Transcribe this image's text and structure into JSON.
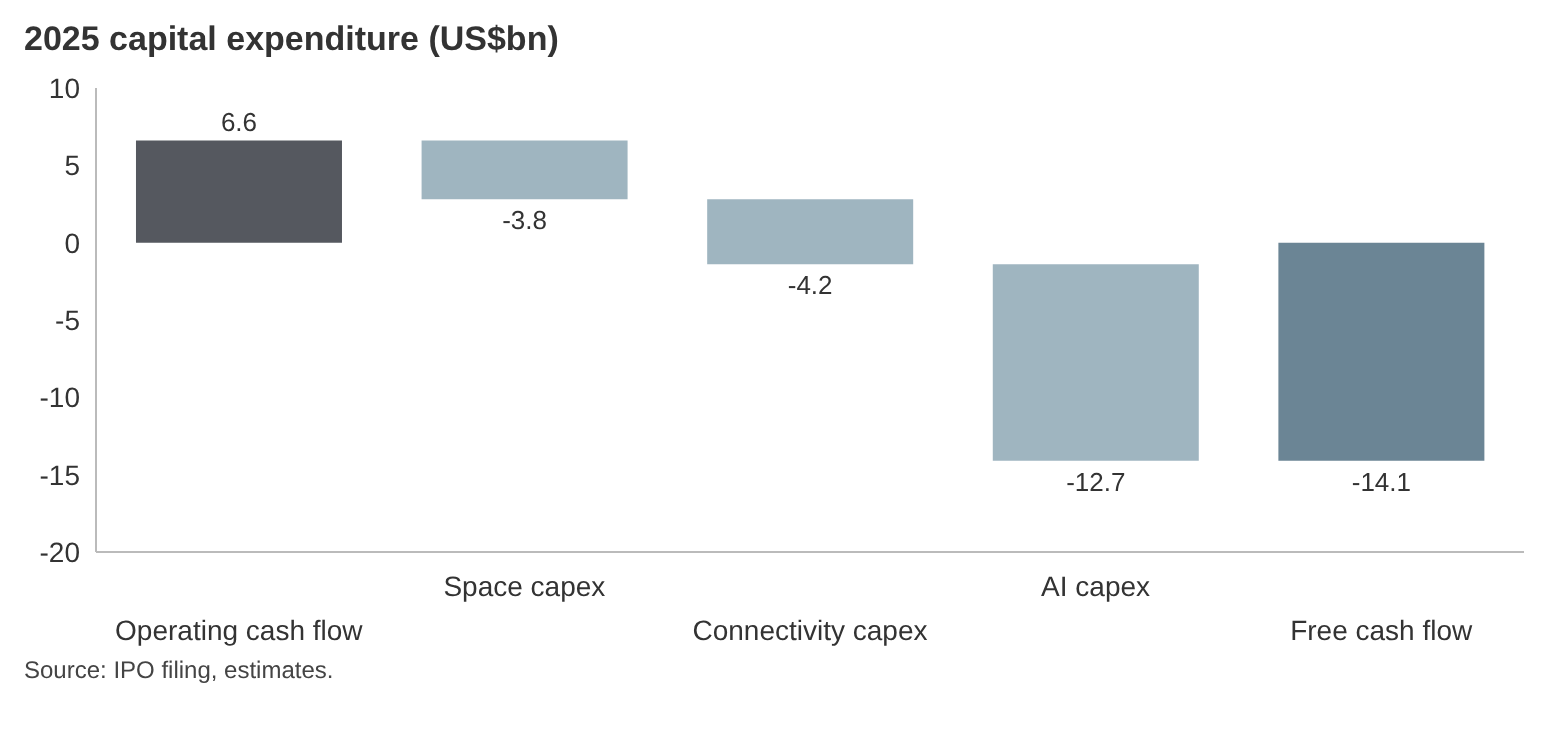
{
  "chart_data": {
    "type": "bar",
    "title": "2025 capital expenditure (US$bn)",
    "categories": [
      "Operating cash flow",
      "Space capex",
      "Connectivity capex",
      "AI capex",
      "Free cash flow"
    ],
    "values": [
      6.6,
      -3.8,
      -4.2,
      -12.7,
      -14.1
    ],
    "base": [
      0,
      6.6,
      2.8,
      -1.4,
      0
    ],
    "colors": [
      "#55585f",
      "#9fb5c0",
      "#9fb5c0",
      "#9fb5c0",
      "#6b8595"
    ],
    "ylim": [
      -20,
      10
    ],
    "yticks": [
      -20,
      -15,
      -10,
      -5,
      0,
      5,
      10
    ],
    "data_labels": true,
    "grid": false,
    "legend": false,
    "annotations": [
      "Source: IPO filing, estimates."
    ]
  }
}
